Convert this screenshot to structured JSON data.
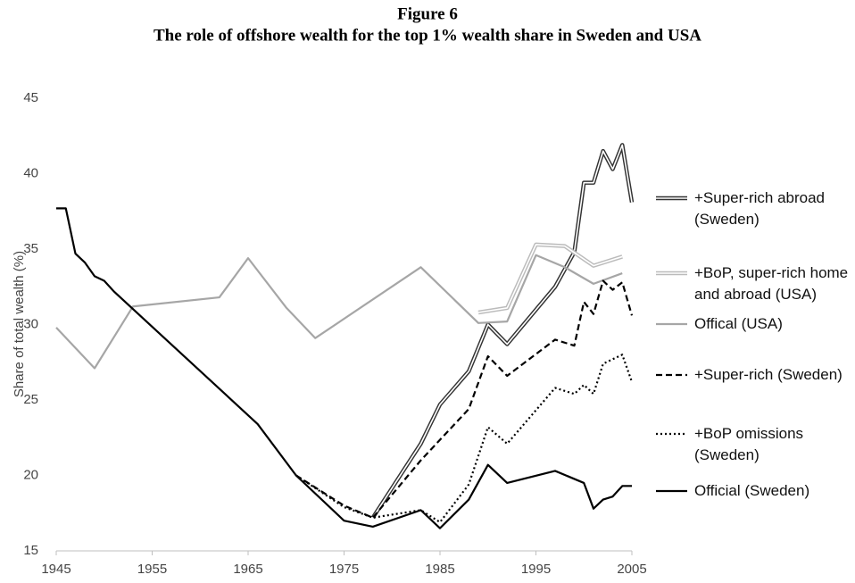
{
  "chart_data": {
    "type": "line",
    "title": "Figure 6",
    "subtitle": "The role of offshore wealth for the top 1% wealth share in Sweden and USA",
    "y_label": "Share of total wealth (%)",
    "xlim": [
      1945,
      2005
    ],
    "xticks": [
      1945,
      1955,
      1965,
      1975,
      1985,
      1995,
      2005
    ],
    "ylim": [
      15,
      45
    ],
    "yticks": [
      15,
      20,
      25,
      30,
      35,
      40,
      45
    ],
    "grid": false,
    "legend": "right",
    "series": [
      {
        "name": "+Super-rich abroad (Sweden)",
        "color": "#333333",
        "style": "double",
        "x": [
          1978,
          1983,
          1985,
          1988,
          1990,
          1992,
          1997,
          1999,
          2000,
          2001,
          2002,
          2003,
          2004,
          2005
        ],
        "values": [
          17.2,
          22.1,
          24.7,
          26.9,
          30.0,
          28.7,
          32.5,
          34.8,
          39.4,
          39.4,
          41.5,
          40.3,
          41.9,
          38.1
        ]
      },
      {
        "name": "+BoP, super-rich home and abroad (USA)",
        "color": "#bbbbbb",
        "style": "double",
        "x": [
          1989,
          1992,
          1995,
          1998,
          2001,
          2004
        ],
        "values": [
          30.8,
          31.1,
          35.3,
          35.2,
          33.9,
          34.5
        ]
      },
      {
        "name": "Offical (USA)",
        "color": "#a6a6a6",
        "style": "solid",
        "x": [
          1945,
          1949,
          1953,
          1962,
          1965,
          1969,
          1972,
          1983,
          1989,
          1992,
          1995,
          1998,
          2001,
          2004
        ],
        "values": [
          29.8,
          27.1,
          31.2,
          31.8,
          34.4,
          31.1,
          29.1,
          33.8,
          30.1,
          30.2,
          34.6,
          33.8,
          32.7,
          33.4
        ]
      },
      {
        "name": "+Super-rich (Sweden)",
        "color": "#000000",
        "style": "dashed",
        "x": [
          1970,
          1975,
          1978,
          1983,
          1988,
          1990,
          1992,
          1997,
          1999,
          2000,
          2001,
          2002,
          2003,
          2004,
          2005
        ],
        "values": [
          20.0,
          18.0,
          17.2,
          21.0,
          24.4,
          27.9,
          26.6,
          29.0,
          28.6,
          31.5,
          30.7,
          32.9,
          32.3,
          32.8,
          30.6
        ]
      },
      {
        "name": "+BoP omissions (Sweden)",
        "color": "#000000",
        "style": "dotted",
        "x": [
          1970,
          1975,
          1978,
          1983,
          1985,
          1988,
          1990,
          1992,
          1997,
          1999,
          2000,
          2001,
          2002,
          2004,
          2005
        ],
        "values": [
          20.0,
          17.9,
          17.2,
          17.7,
          16.9,
          19.4,
          23.2,
          22.1,
          25.8,
          25.4,
          26.0,
          25.4,
          27.4,
          28.0,
          26.2
        ]
      },
      {
        "name": "Official (Sweden)",
        "color": "#000000",
        "style": "solid",
        "x": [
          1945,
          1946,
          1947,
          1948,
          1949,
          1950,
          1951,
          1966,
          1970,
          1975,
          1978,
          1983,
          1985,
          1988,
          1990,
          1992,
          1997,
          2000,
          2001,
          2002,
          2003,
          2004,
          2005
        ],
        "values": [
          37.7,
          37.7,
          34.7,
          34.1,
          33.2,
          32.9,
          32.2,
          23.4,
          20.0,
          17.0,
          16.6,
          17.7,
          16.5,
          18.4,
          20.7,
          19.5,
          20.3,
          19.5,
          17.8,
          18.4,
          18.6,
          19.3,
          19.3
        ]
      }
    ]
  }
}
